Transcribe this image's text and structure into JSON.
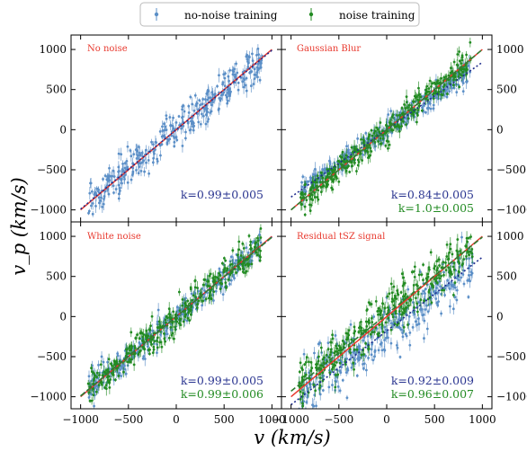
{
  "chart_data": {
    "type": "scatter",
    "xlabel": "v (km/s)",
    "ylabel": "v_p (km/s)",
    "xlim": [
      -1100,
      1100
    ],
    "ylim": [
      -1150,
      1180
    ],
    "xticks": [
      -1000,
      -500,
      0,
      500,
      1000
    ],
    "yticks": [
      -1000,
      -500,
      0,
      500,
      1000
    ],
    "legend": {
      "placement": "top-center",
      "entries": [
        {
          "name": "no-noise training",
          "color": "#5b8fc7"
        },
        {
          "name": "noise training",
          "color": "#228b22"
        }
      ]
    },
    "colors": {
      "no_noise": "#5b8fc7",
      "noise": "#228b22",
      "fit_no_noise": "#1f2d8c",
      "fit_noise": "#2e7d32",
      "identity": "#e8392e",
      "title": "#e8392e",
      "k_no_noise": "#2a3590",
      "k_noise": "#228b22"
    },
    "panels": [
      {
        "title": "No noise",
        "series": [
          {
            "name": "no-noise training",
            "slope": 0.99,
            "scatter": 110,
            "x_range": [
              -920,
              920
            ]
          }
        ],
        "k_labels": [
          {
            "text": "k=0.99±0.005",
            "color": "#2a3590"
          }
        ]
      },
      {
        "title": "Gaussian Blur",
        "series": [
          {
            "name": "no-noise training",
            "slope": 0.84,
            "scatter": 70,
            "x_range": [
              -900,
              880
            ]
          },
          {
            "name": "noise training",
            "slope": 1.0,
            "scatter": 90,
            "x_range": [
              -900,
              880
            ]
          }
        ],
        "k_labels": [
          {
            "text": "k=0.84±0.005",
            "color": "#2a3590"
          },
          {
            "text": "k=1.0±0.005",
            "color": "#228b22"
          }
        ]
      },
      {
        "title": "White noise",
        "series": [
          {
            "name": "no-noise training",
            "slope": 0.99,
            "scatter": 80,
            "x_range": [
              -920,
              900
            ]
          },
          {
            "name": "noise training",
            "slope": 0.99,
            "scatter": 100,
            "x_range": [
              -920,
              900
            ]
          }
        ],
        "k_labels": [
          {
            "text": "k=0.99±0.005",
            "color": "#2a3590"
          },
          {
            "text": "k=0.99±0.006",
            "color": "#228b22"
          }
        ]
      },
      {
        "title": "Residual tSZ signal",
        "series": [
          {
            "name": "no-noise training",
            "slope": 0.92,
            "intercept": -180,
            "scatter": 170,
            "x_range": [
              -920,
              900
            ]
          },
          {
            "name": "noise training",
            "slope": 0.96,
            "intercept": 30,
            "scatter": 140,
            "x_range": [
              -920,
              900
            ]
          }
        ],
        "k_labels": [
          {
            "text": "k=0.92±0.009",
            "color": "#2a3590"
          },
          {
            "text": "k=0.96±0.007",
            "color": "#228b22"
          }
        ]
      }
    ]
  }
}
